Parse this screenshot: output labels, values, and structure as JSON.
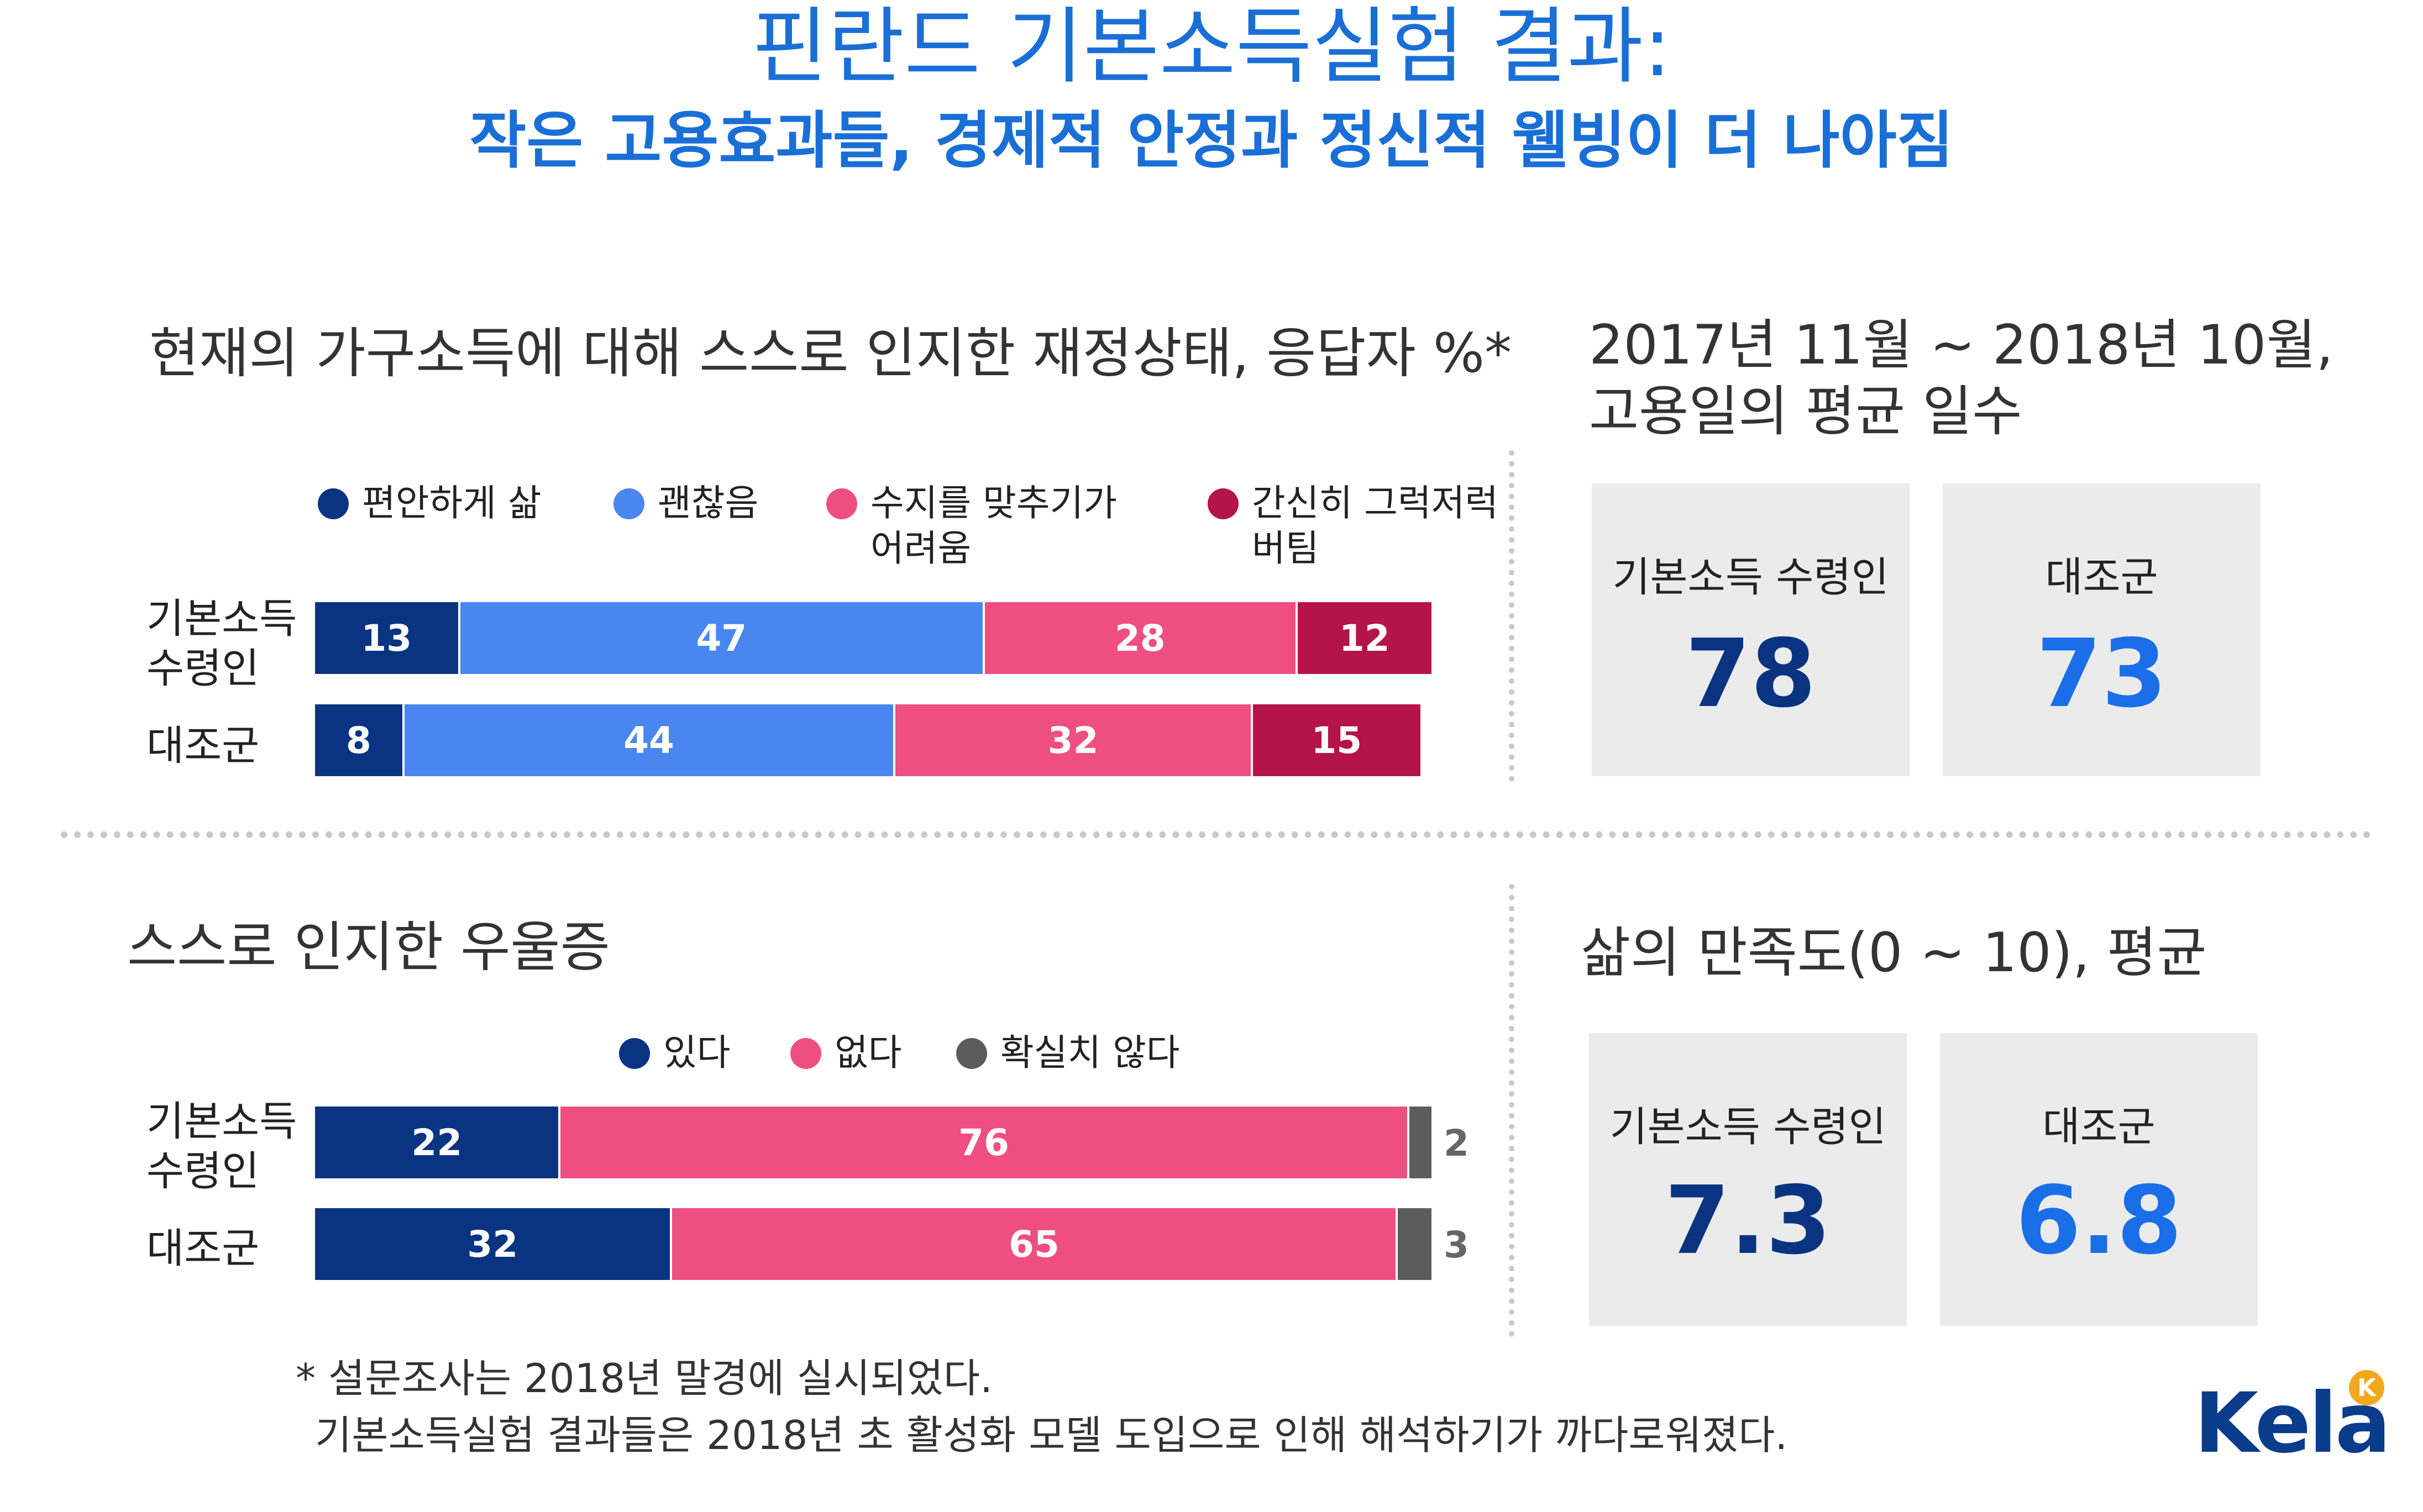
{
  "title": "핀란드 기본소득실험 결과:",
  "subtitle": "작은 고용효과들, 경제적 안정과 정신적 웰빙이 더 나아짐",
  "colors": {
    "title": "#1a6fd6",
    "navy": "#0a3481",
    "blue": "#4a86f0",
    "pink": "#ee4f80",
    "crimson": "#b4144a",
    "gray": "#5c5c5c",
    "box_bg": "#ebebeb",
    "value_navy": "#0a3481",
    "value_blue": "#1a6fe8"
  },
  "chart_data": [
    {
      "type": "bar",
      "stacked": true,
      "orientation": "horizontal",
      "title": "현재의 가구소득에 대해 스스로 인지한 재정상태, 응답자 %*",
      "categories": [
        "기본소득\n수령인",
        "대조군"
      ],
      "category_lines": [
        [
          "기본소득",
          "수령인"
        ],
        [
          "대조군"
        ]
      ],
      "series": [
        {
          "name": "편안하게 삶",
          "color": "#0a3481",
          "values": [
            13,
            8
          ]
        },
        {
          "name": "괜찮음",
          "color": "#4a86f0",
          "values": [
            47,
            44
          ]
        },
        {
          "name": "수지를 맞추기가\n어려움",
          "color": "#ee4f80",
          "values": [
            28,
            32
          ]
        },
        {
          "name": "간신히 그럭저럭\n버팀",
          "color": "#b4144a",
          "values": [
            12,
            15
          ]
        }
      ],
      "xlim": [
        0,
        100
      ],
      "legend_position": "top"
    },
    {
      "type": "bar",
      "stacked": true,
      "orientation": "horizontal",
      "title": "스스로 인지한 우울증",
      "categories": [
        "기본소득\n수령인",
        "대조군"
      ],
      "category_lines": [
        [
          "기본소득",
          "수령인"
        ],
        [
          "대조군"
        ]
      ],
      "series": [
        {
          "name": "있다",
          "color": "#0a3481",
          "values": [
            22,
            32
          ]
        },
        {
          "name": "없다",
          "color": "#ee4f80",
          "values": [
            76,
            65
          ]
        },
        {
          "name": "확실치 않다",
          "color": "#5c5c5c",
          "values": [
            2,
            3
          ]
        }
      ],
      "xlim": [
        0,
        100
      ],
      "legend_position": "top"
    }
  ],
  "employment": {
    "title_line1": "2017년 11월 ~ 2018년 10월,",
    "title_line2": "고용일의 평균 일수",
    "recipient_label": "기본소득 수령인",
    "recipient_value": "78",
    "control_label": "대조군",
    "control_value": "73"
  },
  "satisfaction": {
    "title": "삶의 만족도(0 ~ 10), 평균",
    "recipient_label": "기본소득 수령인",
    "recipient_value": "7.3",
    "control_label": "대조군",
    "control_value": "6.8"
  },
  "footnote": {
    "line1": "* 설문조사는 2018년 말경에 실시되었다.",
    "line2": "기본소득실험 결과들은 2018년 초 활성화 모델 도입으로 인해 해석하기가 까다로워졌다."
  },
  "logo": {
    "text": "Kela"
  }
}
